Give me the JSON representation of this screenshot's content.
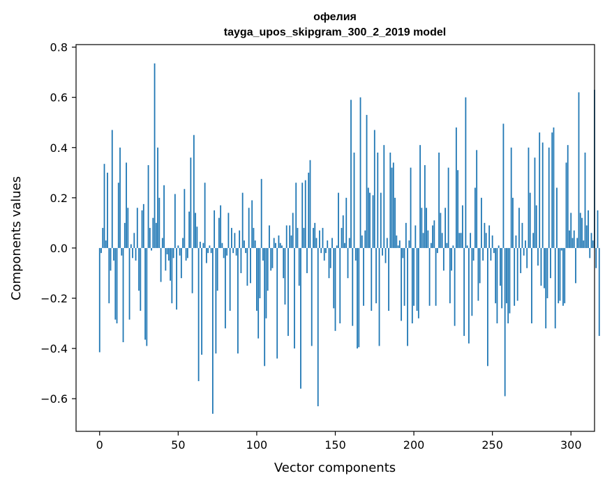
{
  "chart_data": {
    "type": "bar",
    "title_line1": "офелия",
    "title_line2": "tayga_upos_skipgram_300_2_2019 model",
    "xlabel": "Vector components",
    "ylabel": "Components values",
    "xlim": [
      -15,
      315
    ],
    "ylim": [
      -0.73,
      0.81
    ],
    "xticks": [
      0,
      50,
      100,
      150,
      200,
      250,
      300
    ],
    "xtick_labels": [
      "0",
      "50",
      "100",
      "150",
      "200",
      "250",
      "300"
    ],
    "yticks": [
      -0.6,
      -0.4,
      -0.2,
      0.0,
      0.2,
      0.4,
      0.6,
      0.8
    ],
    "ytick_labels": [
      "−0.6",
      "−0.4",
      "−0.2",
      "0.0",
      "0.2",
      "0.4",
      "0.6",
      "0.8"
    ],
    "bar_color": "#1f77b4",
    "values": [
      -0.415,
      -0.02,
      0.08,
      0.335,
      0.03,
      0.3,
      -0.22,
      -0.09,
      0.47,
      -0.05,
      -0.285,
      -0.3,
      0.26,
      0.4,
      -0.03,
      -0.375,
      0.1,
      0.34,
      0.16,
      -0.285,
      0.015,
      -0.04,
      0.06,
      -0.05,
      0.16,
      -0.17,
      -0.25,
      0.15,
      0.175,
      -0.365,
      -0.39,
      0.33,
      0.08,
      -0.01,
      0.12,
      0.735,
      0.1,
      0.4,
      0.2,
      -0.135,
      0.04,
      0.25,
      -0.09,
      -0.025,
      -0.05,
      -0.13,
      -0.22,
      -0.04,
      0.215,
      -0.245,
      0.01,
      -0.03,
      -0.12,
      0.04,
      0.235,
      -0.05,
      -0.04,
      0.145,
      0.36,
      -0.18,
      0.45,
      0.14,
      0.085,
      -0.53,
      0.025,
      -0.425,
      0.02,
      0.26,
      -0.06,
      -0.02,
      0.01,
      -0.02,
      -0.66,
      0.15,
      -0.42,
      -0.17,
      0.12,
      0.17,
      0.02,
      -0.04,
      -0.32,
      -0.03,
      0.14,
      -0.25,
      0.08,
      -0.02,
      0.06,
      -0.03,
      -0.42,
      0.07,
      -0.1,
      0.22,
      0.03,
      -0.02,
      -0.15,
      0.16,
      -0.14,
      0.19,
      0.08,
      0.03,
      -0.25,
      -0.36,
      -0.2,
      0.275,
      -0.05,
      -0.47,
      -0.28,
      -0.17,
      0.09,
      -0.09,
      -0.08,
      0.04,
      0.02,
      -0.44,
      0.05,
      0.02,
      0.01,
      -0.12,
      -0.225,
      0.09,
      -0.35,
      0.09,
      0.05,
      0.14,
      -0.4,
      0.26,
      0.08,
      -0.15,
      -0.56,
      0.26,
      0.08,
      0.27,
      -0.1,
      0.3,
      0.35,
      -0.39,
      0.08,
      0.1,
      0.04,
      -0.63,
      0.07,
      -0.02,
      0.08,
      -0.05,
      -0.02,
      0.03,
      -0.12,
      -0.08,
      0.04,
      -0.24,
      -0.33,
      0.01,
      0.22,
      -0.3,
      0.08,
      0.13,
      0.02,
      0.2,
      -0.12,
      0.04,
      0.59,
      -0.31,
      0.38,
      -0.05,
      -0.4,
      -0.395,
      0.6,
      0.05,
      -0.23,
      0.07,
      0.53,
      0.24,
      0.22,
      -0.25,
      0.21,
      0.47,
      -0.22,
      0.38,
      -0.39,
      0.22,
      -0.03,
      0.41,
      -0.06,
      0.04,
      -0.25,
      0.38,
      0.32,
      0.34,
      0.2,
      0.05,
      0.01,
      0.03,
      -0.29,
      -0.04,
      -0.23,
      0.1,
      -0.39,
      0.03,
      0.32,
      -0.3,
      -0.23,
      0.09,
      -0.25,
      -0.28,
      0.41,
      0.16,
      0.06,
      0.33,
      0.16,
      0.07,
      -0.23,
      0.02,
      0.09,
      0.11,
      -0.23,
      -0.02,
      0.38,
      0.14,
      0.06,
      -0.09,
      0.16,
      0.02,
      0.32,
      -0.22,
      -0.09,
      0.01,
      -0.31,
      0.48,
      0.31,
      0.06,
      0.06,
      0.17,
      -0.35,
      0.6,
      0.01,
      -0.38,
      0.06,
      -0.27,
      -0.05,
      0.24,
      0.39,
      -0.21,
      -0.14,
      0.2,
      -0.05,
      0.1,
      0.06,
      -0.47,
      0.09,
      -0.05,
      0.05,
      -0.02,
      -0.22,
      -0.3,
      0.01,
      -0.15,
      -0.24,
      0.495,
      -0.59,
      -0.22,
      -0.3,
      -0.26,
      0.4,
      0.2,
      -0.23,
      0.05,
      -0.21,
      0.16,
      -0.1,
      0.1,
      -0.03,
      0.03,
      -0.08,
      0.4,
      0.22,
      -0.3,
      0.06,
      0.36,
      0.17,
      -0.07,
      0.46,
      -0.15,
      0.42,
      -0.16,
      -0.32,
      -0.2,
      0.4,
      -0.12,
      0.46,
      0.48,
      -0.32,
      0.24,
      -0.22,
      -0.21,
      -0.01,
      -0.23,
      -0.22,
      0.34,
      0.41,
      0.07,
      0.14,
      0.04,
      0.07,
      -0.14,
      0.04,
      0.62,
      0.14,
      0.12,
      0.03,
      0.38,
      0.09,
      0.15,
      -0.04,
      0.06,
      0.03,
      0.63,
      -0.08,
      0.15,
      -0.35
    ]
  }
}
